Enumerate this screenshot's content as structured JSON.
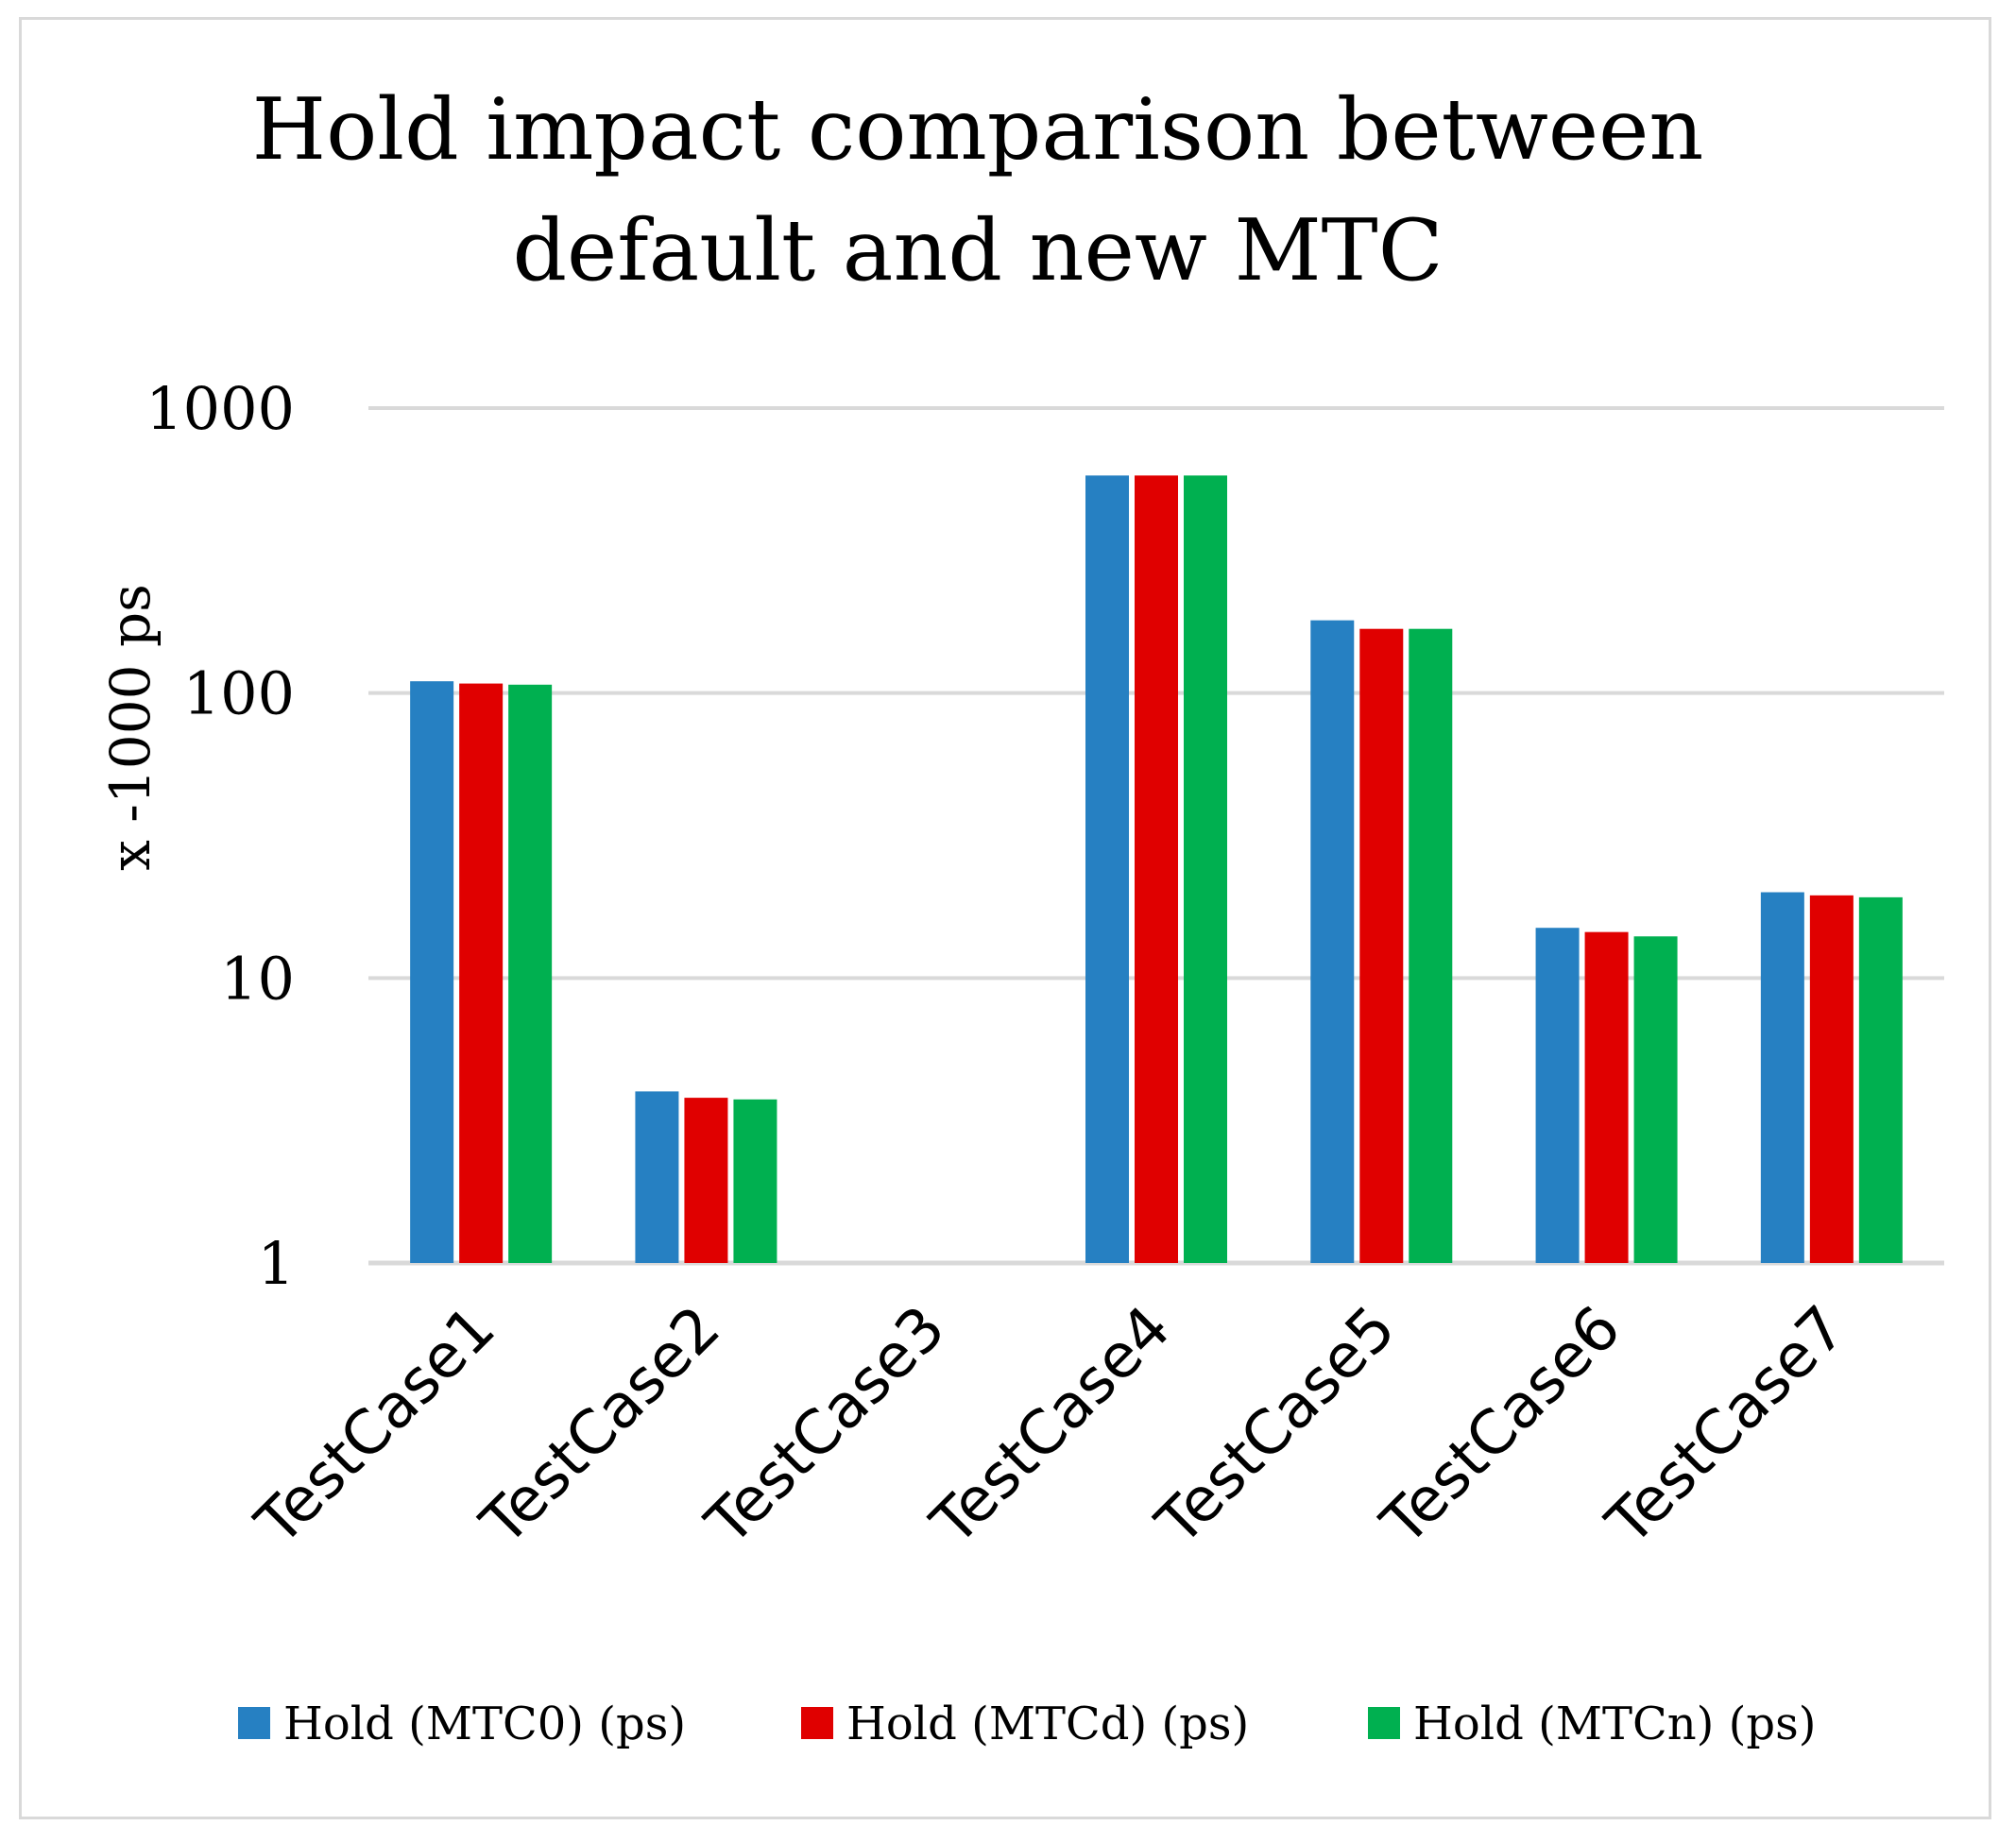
{
  "chart_data": {
    "type": "bar",
    "title_lines": [
      "Hold impact comparison between",
      "default and new MTC"
    ],
    "ylabel": "x -1000 ps",
    "xlabel": "",
    "yscale": "log",
    "ylim": [
      1,
      1000
    ],
    "yticks": [
      1,
      10,
      100,
      1000
    ],
    "ytick_labels": [
      "1",
      "10",
      "100",
      "1000"
    ],
    "grid": true,
    "legend_position": "bottom",
    "categories": [
      "TestCase1",
      "TestCase2",
      "TestCase3",
      "TestCase4",
      "TestCase5",
      "TestCase6",
      "TestCase7"
    ],
    "series": [
      {
        "name": "Hold (MTC0) (ps)",
        "color": "#2680c2",
        "values": [
          110,
          4.0,
          null,
          580,
          180,
          15,
          20
        ]
      },
      {
        "name": "Hold (MTCd) (ps)",
        "color": "#e00000",
        "values": [
          108,
          3.8,
          null,
          580,
          168,
          14.5,
          19.5
        ]
      },
      {
        "name": "Hold (MTCn) (ps)",
        "color": "#00b050",
        "values": [
          107,
          3.75,
          null,
          580,
          168,
          14,
          19.2
        ]
      }
    ]
  }
}
